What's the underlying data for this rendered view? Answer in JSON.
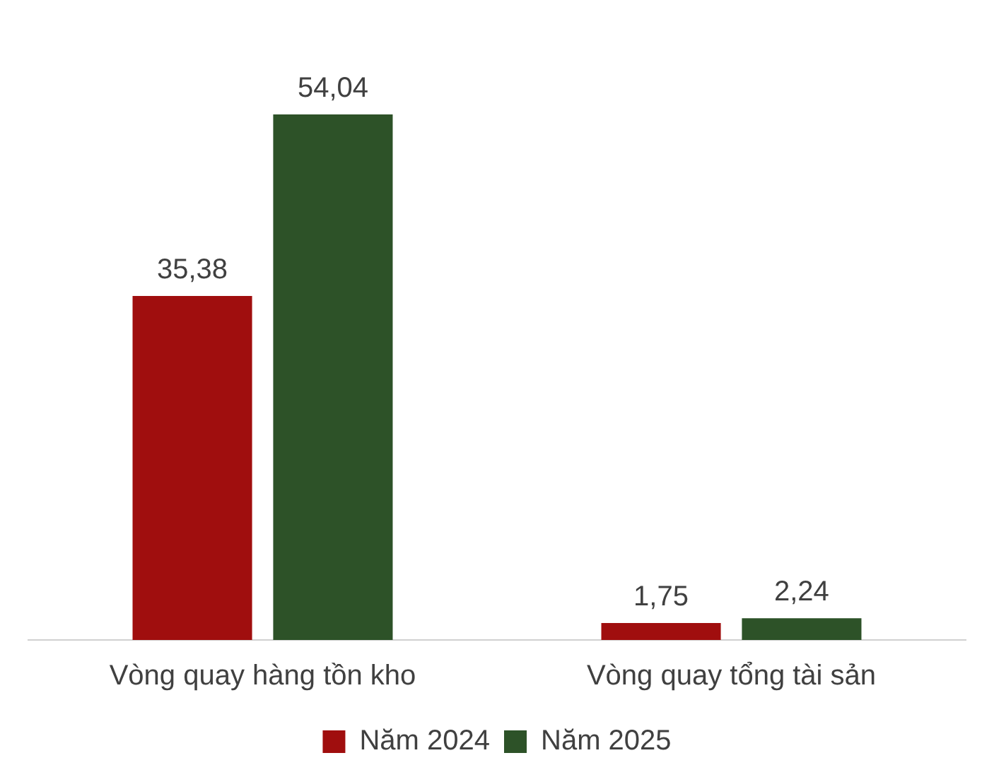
{
  "chart_data": {
    "type": "bar",
    "categories": [
      "Vòng quay hàng tồn kho",
      "Vòng quay tổng tài sản"
    ],
    "series": [
      {
        "name": "Năm 2024",
        "color": "#a00e0e",
        "values": [
          35.38,
          1.75
        ],
        "value_labels": [
          "35,38",
          "1,75"
        ]
      },
      {
        "name": "Năm 2025",
        "color": "#2d5228",
        "values": [
          54.04,
          2.24
        ],
        "value_labels": [
          "54,04",
          "2,24"
        ]
      }
    ],
    "grid": false,
    "legend": "bottom"
  }
}
